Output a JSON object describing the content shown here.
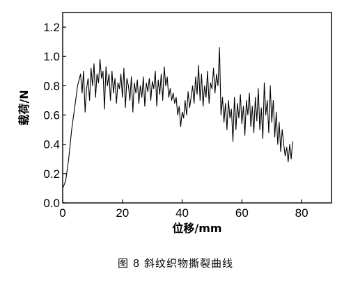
{
  "caption": "图 8  斜纹织物撕裂曲线",
  "chart_data": {
    "type": "line",
    "title": "",
    "xlabel": "位移/mm",
    "ylabel": "载荷/N",
    "xlim": [
      0,
      90
    ],
    "ylim": [
      0,
      1.3
    ],
    "xticks": [
      0,
      20,
      40,
      60,
      80
    ],
    "xtick_labels": [
      "0",
      "20",
      "40",
      "60",
      "80"
    ],
    "yticks": [
      0.0,
      0.2,
      0.4,
      0.6,
      0.8,
      1.0,
      1.2
    ],
    "ytick_labels": [
      "0.0",
      "0.2",
      "0.4",
      "0.6",
      "0.8",
      "1.0",
      "1.2"
    ],
    "grid": false,
    "legend": "none",
    "line_color": "#000000",
    "series": [
      {
        "x": [
          0,
          1,
          2,
          3,
          4,
          5,
          6,
          6.5,
          7,
          7.5,
          8,
          8.5,
          9,
          9.5,
          10,
          10.5,
          11,
          11.5,
          12,
          12.5,
          13,
          13.5,
          14,
          14.5,
          15,
          15.5,
          16,
          16.5,
          17,
          17.5,
          18,
          18.5,
          19,
          19.5,
          20,
          20.5,
          21,
          21.5,
          22,
          22.5,
          23,
          23.5,
          24,
          24.5,
          25,
          25.5,
          26,
          26.5,
          27,
          27.5,
          28,
          28.5,
          29,
          29.5,
          30,
          30.5,
          31,
          31.5,
          32,
          32.5,
          33,
          33.5,
          34,
          34.5,
          35,
          35.5,
          36,
          36.5,
          37,
          37.5,
          38,
          38.5,
          39,
          39.5,
          40,
          40.5,
          41,
          41.5,
          42,
          42.5,
          43,
          43.5,
          44,
          44.5,
          45,
          45.5,
          46,
          46.5,
          47,
          47.5,
          48,
          48.5,
          49,
          49.5,
          50,
          50.5,
          51,
          51.5,
          52,
          52.5,
          53,
          53.5,
          54,
          54.5,
          55,
          55.5,
          56,
          56.5,
          57,
          57.5,
          58,
          58.5,
          59,
          59.5,
          60,
          60.5,
          61,
          61.5,
          62,
          62.5,
          63,
          63.5,
          64,
          64.5,
          65,
          65.5,
          66,
          66.5,
          67,
          67.5,
          68,
          68.5,
          69,
          69.5,
          70,
          70.5,
          71,
          71.5,
          72,
          72.5,
          73,
          73.5,
          74,
          74.5,
          75,
          75.5,
          76,
          76.5,
          77
        ],
        "y": [
          0.1,
          0.15,
          0.3,
          0.5,
          0.65,
          0.8,
          0.88,
          0.75,
          0.9,
          0.62,
          0.78,
          0.85,
          0.7,
          0.92,
          0.8,
          0.95,
          0.72,
          0.88,
          0.82,
          0.98,
          0.85,
          0.9,
          0.64,
          0.93,
          0.8,
          0.88,
          0.7,
          0.9,
          0.75,
          0.85,
          0.68,
          0.82,
          0.78,
          0.88,
          0.72,
          0.92,
          0.65,
          0.85,
          0.8,
          0.7,
          0.86,
          0.62,
          0.82,
          0.75,
          0.84,
          0.68,
          0.8,
          0.72,
          0.86,
          0.66,
          0.82,
          0.76,
          0.85,
          0.7,
          0.83,
          0.78,
          0.9,
          0.66,
          0.84,
          0.74,
          0.88,
          0.7,
          0.93,
          0.8,
          0.86,
          0.72,
          0.78,
          0.7,
          0.75,
          0.68,
          0.72,
          0.6,
          0.66,
          0.52,
          0.62,
          0.58,
          0.7,
          0.6,
          0.76,
          0.65,
          0.72,
          0.8,
          0.68,
          0.86,
          0.74,
          0.94,
          0.7,
          0.88,
          0.66,
          0.8,
          0.72,
          0.9,
          0.68,
          0.82,
          0.78,
          0.92,
          0.75,
          0.88,
          0.8,
          1.06,
          0.6,
          0.72,
          0.55,
          0.68,
          0.5,
          0.7,
          0.58,
          0.64,
          0.42,
          0.72,
          0.5,
          0.68,
          0.58,
          0.74,
          0.54,
          0.66,
          0.46,
          0.7,
          0.6,
          0.75,
          0.52,
          0.66,
          0.48,
          0.72,
          0.56,
          0.78,
          0.5,
          0.65,
          0.44,
          0.82,
          0.6,
          0.7,
          0.48,
          0.8,
          0.55,
          0.7,
          0.45,
          0.62,
          0.4,
          0.55,
          0.35,
          0.5,
          0.4,
          0.32,
          0.38,
          0.28,
          0.4,
          0.3,
          0.42
        ]
      }
    ]
  }
}
